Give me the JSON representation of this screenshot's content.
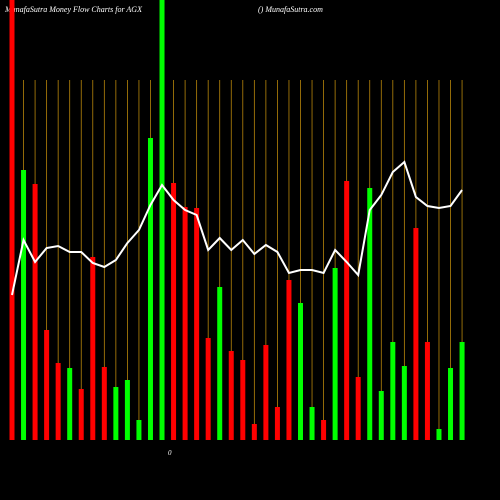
{
  "chart_data": {
    "type": "bar",
    "title": "MunafaSutra  Money Flow  Charts for AGX",
    "subtitle": "() MunafaSutra.com",
    "annotation": "0",
    "categories": [
      null,
      null,
      null,
      null,
      null,
      null,
      null,
      null,
      null,
      null,
      null,
      null,
      null,
      null,
      null,
      null,
      null,
      null,
      null,
      null,
      null,
      null,
      null,
      null,
      null,
      null,
      null,
      null,
      null,
      null,
      null,
      null,
      null,
      null,
      null,
      null,
      null,
      null,
      null,
      null
    ],
    "series": [
      {
        "values": [
          440,
          270,
          256,
          110,
          77,
          72,
          51,
          183,
          73,
          53,
          60,
          20,
          302,
          440,
          257,
          233,
          232,
          102,
          153,
          89,
          80,
          16,
          95,
          33,
          160,
          137,
          33,
          20,
          172,
          259,
          63,
          252,
          49,
          98,
          74,
          212,
          98,
          11,
          72,
          98
        ],
        "colors": [
          "#ff0000",
          "#00ff00",
          "#ff0000",
          "#ff0000",
          "#ff0000",
          "#00ff00",
          "#ff0000",
          "#ff0000",
          "#ff0000",
          "#00ff00",
          "#00ff00",
          "#00ff00",
          "#00ff00",
          "#00ff00",
          "#ff0000",
          "#ff0000",
          "#ff0000",
          "#ff0000",
          "#00ff00",
          "#ff0000",
          "#ff0000",
          "#ff0000",
          "#ff0000",
          "#ff0000",
          "#ff0000",
          "#00ff00",
          "#00ff00",
          "#ff0000",
          "#00ff00",
          "#ff0000",
          "#ff0000",
          "#00ff00",
          "#00ff00",
          "#00ff00",
          "#00ff00",
          "#ff0000",
          "#ff0000",
          "#00ff00",
          "#00ff00",
          "#00ff00"
        ]
      },
      {
        "type": "line",
        "color": "#ffffff",
        "values": [
          145,
          200,
          178,
          192,
          194,
          188,
          188,
          177,
          173,
          180,
          197,
          210,
          235,
          255,
          240,
          230,
          225,
          190,
          202,
          190,
          200,
          186,
          195,
          188,
          167,
          170,
          170,
          167,
          190,
          178,
          165,
          230,
          245,
          268,
          278,
          243,
          234,
          232,
          234,
          250
        ]
      }
    ],
    "ylim": [
      0,
      440
    ],
    "grid": true,
    "grid_color": "#b8860b"
  }
}
